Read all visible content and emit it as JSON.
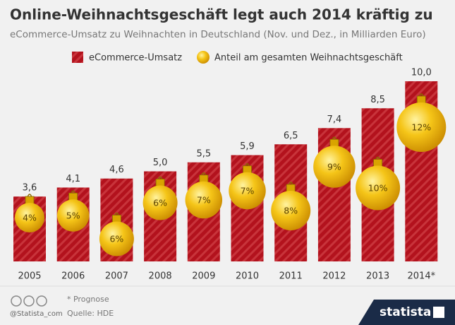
{
  "chart_data": {
    "type": "bar",
    "title": "Online-Weihnachtsgeschäft legt auch 2014 kräftig zu",
    "subtitle": "eCommerce-Umsatz zu Weihnachten in Deutschland (Nov. und Dez., in Milliarden Euro)",
    "categories": [
      "2005",
      "2006",
      "2007",
      "2008",
      "2009",
      "2010",
      "2011",
      "2012",
      "2013",
      "2014*"
    ],
    "series": [
      {
        "name": "eCommerce-Umsatz",
        "color": "#b3121d",
        "values": [
          3.6,
          4.1,
          4.6,
          5.0,
          5.5,
          5.9,
          6.5,
          7.4,
          8.5,
          10.0
        ],
        "value_labels": [
          "3,6",
          "4,1",
          "4,6",
          "5,0",
          "5,5",
          "5,9",
          "6,5",
          "7,4",
          "8,5",
          "10,0"
        ]
      },
      {
        "name": "Anteil am gesamten Weihnachtsgeschäft",
        "color": "#f2b705",
        "values": [
          4,
          5,
          6,
          6,
          7,
          7,
          8,
          9,
          10,
          12
        ],
        "value_labels": [
          "4%",
          "5%",
          "6%",
          "6%",
          "7%",
          "7%",
          "8%",
          "9%",
          "10%",
          "12%"
        ]
      }
    ],
    "footnote": "* Prognose",
    "source": "Quelle: HDE",
    "handle": "@Statista_com",
    "brand": "statista"
  }
}
